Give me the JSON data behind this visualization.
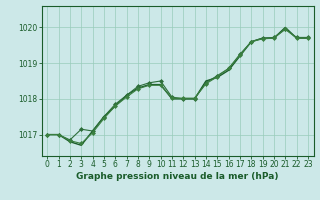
{
  "title": "Graphe pression niveau de la mer (hPa)",
  "background_color": "#cce8e8",
  "grid_color": "#99ccbb",
  "xlim": [
    -0.5,
    23.5
  ],
  "ylim": [
    1016.4,
    1020.6
  ],
  "yticks": [
    1017,
    1018,
    1019,
    1020
  ],
  "xticks": [
    0,
    1,
    2,
    3,
    4,
    5,
    6,
    7,
    8,
    9,
    10,
    11,
    12,
    13,
    14,
    15,
    16,
    17,
    18,
    19,
    20,
    21,
    22,
    23
  ],
  "series": [
    {
      "x": [
        0,
        1,
        2,
        3,
        4,
        5,
        6,
        7,
        8,
        9,
        10,
        11,
        12,
        13,
        14,
        15,
        16,
        17,
        18,
        19,
        20,
        21,
        22,
        23
      ],
      "y": [
        1017.0,
        1017.0,
        1016.8,
        1016.7,
        1017.1,
        1017.5,
        1017.8,
        1018.1,
        1018.3,
        1018.4,
        1018.4,
        1018.0,
        1018.0,
        1018.0,
        1018.5,
        1018.6,
        1018.8,
        1019.2,
        1019.6,
        1019.7,
        1019.7,
        1020.0,
        1019.7,
        1019.7
      ],
      "color": "#1a5c2a",
      "lw": 1.0,
      "marker": null
    },
    {
      "x": [
        0,
        1,
        2,
        3,
        4,
        5,
        6,
        7,
        8,
        9,
        10,
        11,
        12,
        13,
        14,
        15,
        16,
        17,
        18,
        19,
        20,
        21,
        22,
        23
      ],
      "y": [
        1017.0,
        1017.0,
        1016.85,
        1017.15,
        1017.1,
        1017.5,
        1017.85,
        1018.1,
        1018.35,
        1018.45,
        1018.5,
        1018.05,
        1018.0,
        1018.0,
        1018.45,
        1018.65,
        1018.85,
        1019.25,
        1019.6,
        1019.7,
        1019.72,
        1019.95,
        1019.72,
        1019.72
      ],
      "color": "#2d6e3a",
      "lw": 0.8,
      "marker": "D",
      "ms": 2.0
    },
    {
      "x": [
        0,
        1,
        2,
        3,
        4,
        5,
        6,
        7,
        8,
        9,
        10,
        11,
        12,
        13,
        14,
        15,
        16,
        17,
        18,
        19,
        20,
        21,
        22,
        23
      ],
      "y": [
        1017.0,
        1017.0,
        1016.83,
        1016.75,
        1017.05,
        1017.45,
        1017.8,
        1018.05,
        1018.28,
        1018.38,
        1018.38,
        1018.02,
        1018.02,
        1018.02,
        1018.42,
        1018.62,
        1018.85,
        1019.22,
        1019.6,
        1019.68,
        1019.7,
        1019.95,
        1019.7,
        1019.7
      ],
      "color": "#3a8040",
      "lw": 0.8,
      "marker": "D",
      "ms": 2.0
    }
  ],
  "tick_color": "#1a5c2a",
  "tick_fontsize": 5.5,
  "xlabel_fontsize": 6.5,
  "xlabel_color": "#1a5c2a",
  "spine_color": "#1a5c2a"
}
